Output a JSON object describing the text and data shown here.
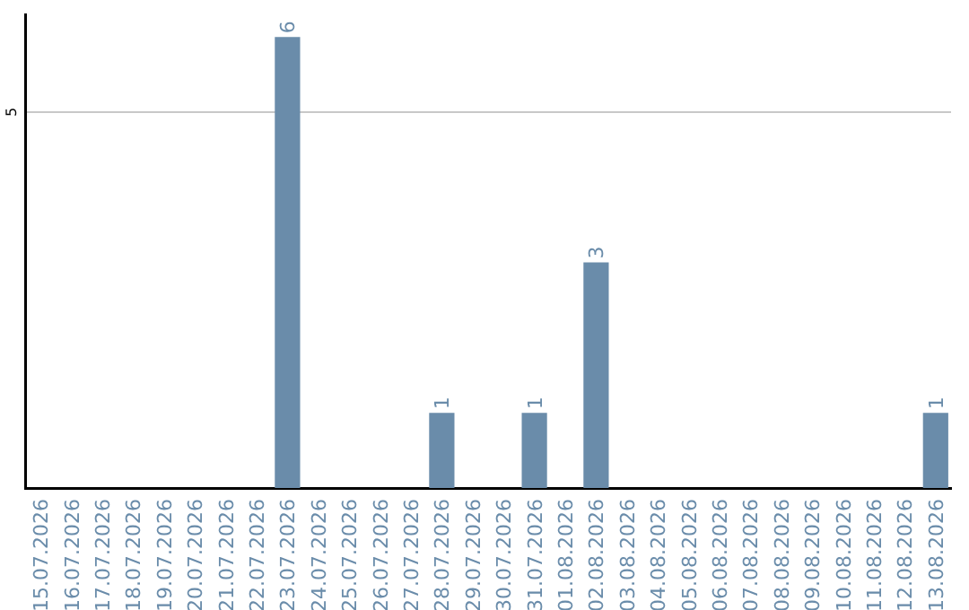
{
  "chart_data": {
    "type": "bar",
    "categories": [
      "15.07.2026",
      "16.07.2026",
      "17.07.2026",
      "18.07.2026",
      "19.07.2026",
      "20.07.2026",
      "21.07.2026",
      "22.07.2026",
      "23.07.2026",
      "24.07.2026",
      "25.07.2026",
      "26.07.2026",
      "27.07.2026",
      "28.07.2026",
      "29.07.2026",
      "30.07.2026",
      "31.07.2026",
      "01.08.2026",
      "02.08.2026",
      "03.08.2026",
      "04.08.2026",
      "05.08.2026",
      "06.08.2026",
      "07.08.2026",
      "08.08.2026",
      "09.08.2026",
      "10.08.2026",
      "11.08.2026",
      "12.08.2026",
      "13.08.2026"
    ],
    "values": [
      0,
      0,
      0,
      0,
      0,
      0,
      0,
      0,
      6,
      0,
      0,
      0,
      0,
      1,
      0,
      0,
      1,
      0,
      3,
      0,
      0,
      0,
      0,
      0,
      0,
      0,
      0,
      0,
      0,
      1
    ],
    "value_labels": [
      null,
      null,
      null,
      null,
      null,
      null,
      null,
      null,
      "6",
      null,
      null,
      null,
      null,
      "1",
      null,
      null,
      "1",
      null,
      "3",
      null,
      null,
      null,
      null,
      null,
      null,
      null,
      null,
      null,
      null,
      "1"
    ],
    "color": "#6a8caa",
    "ylim": [
      0,
      6.3
    ],
    "yticks": [
      5
    ],
    "grid": "y",
    "legend": false
  }
}
